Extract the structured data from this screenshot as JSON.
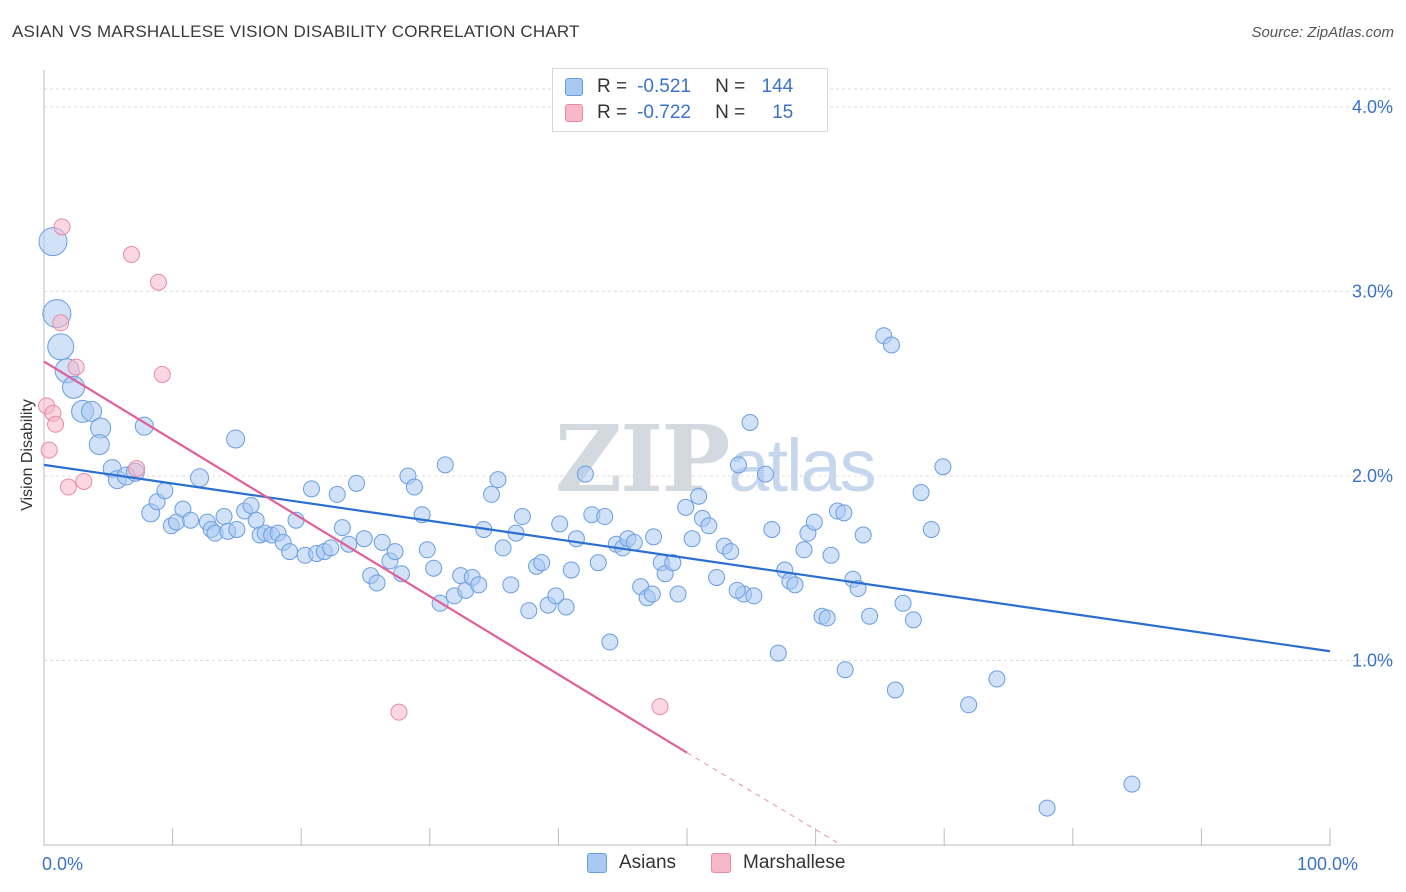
{
  "header": {
    "title": "ASIAN VS MARSHALLESE VISION DISABILITY CORRELATION CHART",
    "source": "Source: ZipAtlas.com"
  },
  "watermark": {
    "zip": "ZIP",
    "atlas": "atlas"
  },
  "legend": {
    "rows": [
      {
        "r_label": "R =",
        "r_value": "-0.521",
        "n_label": "N =",
        "n_value": "144",
        "color": "#a9c8f2"
      },
      {
        "r_label": "R =",
        "r_value": "-0.722",
        "n_label": "N =",
        "n_value": "15",
        "color": "#f7b8c9"
      }
    ]
  },
  "bottom_legend": {
    "items": [
      {
        "label": "Asians",
        "color": "#a9c8f2"
      },
      {
        "label": "Marshallese",
        "color": "#f7b8c9"
      }
    ]
  },
  "colors": {
    "asians_fill": "#a9c8f2",
    "asians_stroke": "#6a9ee0",
    "asians_line": "#2a6fd0",
    "marshallese_fill": "#f7b8c9",
    "marshallese_stroke": "#e88aa6",
    "marshallese_line": "#e0609a",
    "tick_text": "#3b72c8",
    "grid": "#dcdcdc"
  },
  "chart_data": {
    "type": "scatter",
    "title": "ASIAN VS MARSHALLESE VISION DISABILITY CORRELATION CHART",
    "xlabel": "",
    "ylabel": "Vision Disability",
    "xlim": [
      0,
      100
    ],
    "ylim": [
      0,
      4.2
    ],
    "x_tick_labels": [
      {
        "value": 0,
        "label": "0.0%"
      },
      {
        "value": 100,
        "label": "100.0%"
      }
    ],
    "y_tick_labels": [
      {
        "value": 1.0,
        "label": "1.0%"
      },
      {
        "value": 2.0,
        "label": "2.0%"
      },
      {
        "value": 3.0,
        "label": "3.0%"
      },
      {
        "value": 4.0,
        "label": "4.0%"
      }
    ],
    "grid": true,
    "series": [
      {
        "name": "Asians",
        "trend": {
          "x": [
            0,
            100
          ],
          "y": [
            2.06,
            1.05
          ]
        },
        "points": [
          [
            0.7,
            3.27,
            14
          ],
          [
            1.0,
            2.88,
            14
          ],
          [
            1.3,
            2.7,
            13
          ],
          [
            1.8,
            2.57,
            12
          ],
          [
            2.3,
            2.48,
            11
          ],
          [
            3.0,
            2.35,
            11
          ],
          [
            3.7,
            2.35,
            10
          ],
          [
            4.4,
            2.26,
            10
          ],
          [
            4.3,
            2.17,
            10
          ],
          [
            5.3,
            2.04,
            9
          ],
          [
            5.7,
            1.98,
            9
          ],
          [
            6.4,
            2.0,
            9
          ],
          [
            7.1,
            2.02,
            9
          ],
          [
            7.8,
            2.27,
            9
          ],
          [
            8.3,
            1.8,
            9
          ],
          [
            8.8,
            1.86,
            8
          ],
          [
            9.4,
            1.92,
            8
          ],
          [
            9.9,
            1.73,
            8
          ],
          [
            10.3,
            1.75,
            8
          ],
          [
            10.8,
            1.82,
            8
          ],
          [
            11.4,
            1.76,
            8
          ],
          [
            12.1,
            1.99,
            9
          ],
          [
            12.7,
            1.75,
            8
          ],
          [
            13.0,
            1.71,
            8
          ],
          [
            13.3,
            1.69,
            8
          ],
          [
            14.0,
            1.78,
            8
          ],
          [
            14.3,
            1.7,
            8
          ],
          [
            14.9,
            2.2,
            9
          ],
          [
            15.0,
            1.71,
            8
          ],
          [
            15.6,
            1.81,
            8
          ],
          [
            16.1,
            1.84,
            8
          ],
          [
            16.5,
            1.76,
            8
          ],
          [
            16.8,
            1.68,
            8
          ],
          [
            17.2,
            1.69,
            8
          ],
          [
            17.7,
            1.68,
            8
          ],
          [
            18.2,
            1.69,
            8
          ],
          [
            18.6,
            1.64,
            8
          ],
          [
            19.1,
            1.59,
            8
          ],
          [
            19.6,
            1.76,
            8
          ],
          [
            20.3,
            1.57,
            8
          ],
          [
            20.8,
            1.93,
            8
          ],
          [
            21.2,
            1.58,
            8
          ],
          [
            21.8,
            1.59,
            8
          ],
          [
            22.3,
            1.61,
            8
          ],
          [
            22.8,
            1.9,
            8
          ],
          [
            23.2,
            1.72,
            8
          ],
          [
            23.7,
            1.63,
            8
          ],
          [
            24.3,
            1.96,
            8
          ],
          [
            24.9,
            1.66,
            8
          ],
          [
            25.4,
            1.46,
            8
          ],
          [
            25.9,
            1.42,
            8
          ],
          [
            26.3,
            1.64,
            8
          ],
          [
            26.9,
            1.54,
            8
          ],
          [
            27.3,
            1.59,
            8
          ],
          [
            27.8,
            1.47,
            8
          ],
          [
            28.3,
            2.0,
            8
          ],
          [
            28.8,
            1.94,
            8
          ],
          [
            29.4,
            1.79,
            8
          ],
          [
            29.8,
            1.6,
            8
          ],
          [
            30.3,
            1.5,
            8
          ],
          [
            30.8,
            1.31,
            8
          ],
          [
            31.2,
            2.06,
            8
          ],
          [
            31.9,
            1.35,
            8
          ],
          [
            32.4,
            1.46,
            8
          ],
          [
            32.8,
            1.38,
            8
          ],
          [
            33.3,
            1.45,
            8
          ],
          [
            33.8,
            1.41,
            8
          ],
          [
            34.2,
            1.71,
            8
          ],
          [
            34.8,
            1.9,
            8
          ],
          [
            35.3,
            1.98,
            8
          ],
          [
            35.7,
            1.61,
            8
          ],
          [
            36.3,
            1.41,
            8
          ],
          [
            36.7,
            1.69,
            8
          ],
          [
            37.2,
            1.78,
            8
          ],
          [
            37.7,
            1.27,
            8
          ],
          [
            38.3,
            1.51,
            8
          ],
          [
            38.7,
            1.53,
            8
          ],
          [
            39.2,
            1.3,
            8
          ],
          [
            39.8,
            1.35,
            8
          ],
          [
            40.1,
            1.74,
            8
          ],
          [
            40.6,
            1.29,
            8
          ],
          [
            41.0,
            1.49,
            8
          ],
          [
            41.4,
            1.66,
            8
          ],
          [
            42.1,
            2.01,
            8
          ],
          [
            42.6,
            1.79,
            8
          ],
          [
            43.1,
            1.53,
            8
          ],
          [
            43.6,
            1.78,
            8
          ],
          [
            44.0,
            1.1,
            8
          ],
          [
            44.5,
            1.63,
            8
          ],
          [
            45.0,
            1.61,
            8
          ],
          [
            45.4,
            1.66,
            8
          ],
          [
            45.9,
            1.64,
            8
          ],
          [
            46.4,
            1.4,
            8
          ],
          [
            46.9,
            1.34,
            8
          ],
          [
            47.4,
            1.67,
            8
          ],
          [
            48.0,
            1.53,
            8
          ],
          [
            48.3,
            1.47,
            8
          ],
          [
            48.9,
            1.53,
            8
          ],
          [
            49.3,
            1.36,
            8
          ],
          [
            49.9,
            1.83,
            8
          ],
          [
            50.4,
            1.66,
            8
          ],
          [
            50.9,
            1.89,
            8
          ],
          [
            51.2,
            1.77,
            8
          ],
          [
            51.7,
            1.73,
            8
          ],
          [
            52.3,
            1.45,
            8
          ],
          [
            52.9,
            1.62,
            8
          ],
          [
            53.4,
            1.59,
            8
          ],
          [
            54.0,
            2.06,
            8
          ],
          [
            54.4,
            1.36,
            8
          ],
          [
            54.9,
            2.29,
            8
          ],
          [
            55.2,
            1.35,
            8
          ],
          [
            56.1,
            2.01,
            8
          ],
          [
            56.6,
            1.71,
            8
          ],
          [
            57.1,
            1.04,
            8
          ],
          [
            57.6,
            1.49,
            8
          ],
          [
            58.0,
            1.43,
            8
          ],
          [
            58.4,
            1.41,
            8
          ],
          [
            59.1,
            1.6,
            8
          ],
          [
            59.4,
            1.69,
            8
          ],
          [
            59.9,
            1.75,
            8
          ],
          [
            60.5,
            1.24,
            8
          ],
          [
            61.2,
            1.57,
            8
          ],
          [
            61.7,
            1.81,
            8
          ],
          [
            62.2,
            1.8,
            8
          ],
          [
            62.9,
            1.44,
            8
          ],
          [
            63.3,
            1.39,
            8
          ],
          [
            63.7,
            1.68,
            8
          ],
          [
            64.2,
            1.24,
            8
          ],
          [
            65.3,
            2.76,
            8
          ],
          [
            65.9,
            2.71,
            8
          ],
          [
            66.2,
            0.84,
            8
          ],
          [
            66.8,
            1.31,
            8
          ],
          [
            67.6,
            1.22,
            8
          ],
          [
            68.2,
            1.91,
            8
          ],
          [
            69.0,
            1.71,
            8
          ],
          [
            69.9,
            2.05,
            8
          ],
          [
            71.9,
            0.76,
            8
          ],
          [
            74.1,
            0.9,
            8
          ],
          [
            78.0,
            0.2,
            8
          ],
          [
            84.6,
            0.33,
            8
          ],
          [
            60.9,
            1.23,
            8
          ],
          [
            62.3,
            0.95,
            8
          ],
          [
            47.3,
            1.36,
            8
          ],
          [
            53.9,
            1.38,
            8
          ]
        ]
      },
      {
        "name": "Marshallese",
        "trend": {
          "x": [
            0,
            50
          ],
          "y": [
            2.62,
            0.5
          ]
        },
        "trend_extension": {
          "x": [
            50,
            62
          ],
          "y": [
            0.5,
            0.0
          ]
        },
        "points": [
          [
            0.2,
            2.38,
            8
          ],
          [
            0.4,
            2.14,
            8
          ],
          [
            0.7,
            2.34,
            8
          ],
          [
            0.9,
            2.28,
            8
          ],
          [
            1.3,
            2.83,
            8
          ],
          [
            1.4,
            3.35,
            8
          ],
          [
            1.9,
            1.94,
            8
          ],
          [
            2.5,
            2.59,
            8
          ],
          [
            3.1,
            1.97,
            8
          ],
          [
            6.8,
            3.2,
            8
          ],
          [
            7.2,
            2.04,
            8
          ],
          [
            8.9,
            3.05,
            8
          ],
          [
            9.2,
            2.55,
            8
          ],
          [
            27.6,
            0.72,
            8
          ],
          [
            47.9,
            0.75,
            8
          ]
        ]
      }
    ]
  }
}
